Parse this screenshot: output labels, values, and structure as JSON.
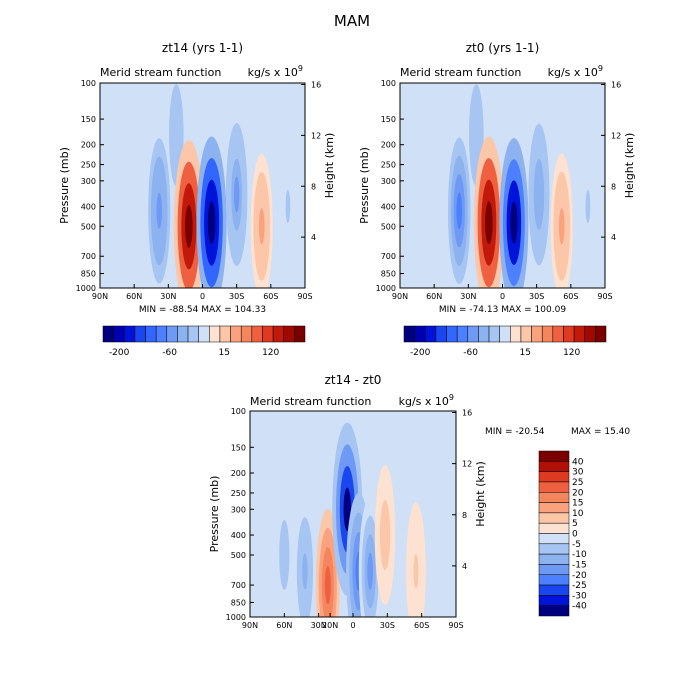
{
  "suptitle": "MAM",
  "chart_data": [
    {
      "type": "heatmap",
      "title": "zt14 (yrs 1-1)",
      "subtitle": "Merid stream function",
      "units_prefix": "kg/s x 10",
      "units_exp": "9",
      "xlabel": "",
      "ylabel": "Pressure (mb)",
      "y2label": "Height (km)",
      "xticks": [
        "90N",
        "60N",
        "30N",
        "0",
        "30S",
        "60S",
        "90S"
      ],
      "xtick_lat": [
        90,
        60,
        30,
        0,
        -30,
        -60,
        -90
      ],
      "yticks": [
        100,
        150,
        200,
        250,
        300,
        400,
        500,
        700,
        850,
        1000
      ],
      "y2ticks": [
        4,
        8,
        12,
        16
      ],
      "ylim": [
        1000,
        100
      ],
      "min_label": "MIN = -88.54",
      "max_label": "MAX = 104.33",
      "colorbar": {
        "orientation": "horizontal",
        "labels": [
          "-200",
          "-60",
          "15",
          "120"
        ],
        "colors": [
          "#00007f",
          "#0000b3",
          "#0014d9",
          "#1946ee",
          "#3366ff",
          "#4d80ff",
          "#6e99f5",
          "#8cb2f0",
          "#a6c5f2",
          "#cfe0f7",
          "#fde1d1",
          "#fcc6a9",
          "#f9a27d",
          "#f4855c",
          "#ee6040",
          "#dd3a1f",
          "#c21a0a",
          "#9e0a00",
          "#7a0000"
        ]
      },
      "cells": [
        {
          "lat": 23,
          "p": 180,
          "v": -10
        },
        {
          "lat": 38,
          "p": 420,
          "v": -30
        },
        {
          "lat": 12,
          "p": 500,
          "v": 88
        },
        {
          "lat": -8,
          "p": 480,
          "v": -88
        },
        {
          "lat": -30,
          "p": 350,
          "v": -25
        },
        {
          "lat": -52,
          "p": 500,
          "v": 30
        },
        {
          "lat": -75,
          "p": 400,
          "v": -5
        }
      ]
    },
    {
      "type": "heatmap",
      "title": "zt0 (yrs 1-1)",
      "subtitle": "Merid stream function",
      "units_prefix": "kg/s x 10",
      "units_exp": "9",
      "xlabel": "",
      "ylabel": "Pressure (mb)",
      "y2label": "Height (km)",
      "xticks": [
        "90N",
        "60N",
        "30N",
        "0",
        "30S",
        "60S",
        "90S"
      ],
      "xtick_lat": [
        90,
        60,
        30,
        0,
        -30,
        -60,
        -90
      ],
      "yticks": [
        100,
        150,
        200,
        250,
        300,
        400,
        500,
        700,
        850,
        1000
      ],
      "y2ticks": [
        4,
        8,
        12,
        16
      ],
      "ylim": [
        1000,
        100
      ],
      "min_label": "MIN = -74.13",
      "max_label": "MAX = 100.09",
      "colorbar": {
        "orientation": "horizontal",
        "labels": [
          "-200",
          "-60",
          "15",
          "120"
        ],
        "colors": [
          "#00007f",
          "#0000b3",
          "#0014d9",
          "#1946ee",
          "#3366ff",
          "#4d80ff",
          "#6e99f5",
          "#8cb2f0",
          "#a6c5f2",
          "#cfe0f7",
          "#fde1d1",
          "#fcc6a9",
          "#f9a27d",
          "#f4855c",
          "#ee6040",
          "#dd3a1f",
          "#c21a0a",
          "#9e0a00",
          "#7a0000"
        ]
      },
      "cells": [
        {
          "lat": 23,
          "p": 180,
          "v": -10
        },
        {
          "lat": 38,
          "p": 420,
          "v": -30
        },
        {
          "lat": 12,
          "p": 480,
          "v": 80
        },
        {
          "lat": -10,
          "p": 480,
          "v": -74
        },
        {
          "lat": -32,
          "p": 350,
          "v": -20
        },
        {
          "lat": -52,
          "p": 500,
          "v": 28
        },
        {
          "lat": -75,
          "p": 400,
          "v": -5
        }
      ]
    },
    {
      "type": "heatmap",
      "title": "zt14 - zt0",
      "subtitle": "Merid stream function",
      "units_prefix": "kg/s x 10",
      "units_exp": "9",
      "xlabel": "",
      "ylabel": "Pressure (mb)",
      "y2label": "Height (km)",
      "xticks": [
        "90N",
        "60N",
        "30N",
        "20N",
        "0",
        "30S",
        "60S",
        "90S"
      ],
      "xtick_lat": [
        90,
        60,
        30,
        20,
        0,
        -30,
        -60,
        -90
      ],
      "yticks": [
        100,
        150,
        200,
        250,
        300,
        400,
        500,
        700,
        850,
        1000
      ],
      "y2ticks": [
        4,
        8,
        12,
        16
      ],
      "ylim": [
        1000,
        100
      ],
      "min_label": "MIN = -20.54",
      "max_label": "MAX =  15.40",
      "colorbar": {
        "orientation": "vertical",
        "labels": [
          "40",
          "30",
          "25",
          "20",
          "15",
          "10",
          "5",
          "0",
          "-5",
          "-10",
          "-15",
          "-20",
          "-25",
          "-30",
          "-40"
        ],
        "colors": [
          "#7a0000",
          "#b01005",
          "#dd3a1f",
          "#ee6040",
          "#f4855c",
          "#f9a27d",
          "#fcc6a9",
          "#fde1d1",
          "#cfe0f7",
          "#a6c5f2",
          "#8cb2f0",
          "#6e99f5",
          "#4d80ff",
          "#1946ee",
          "#0014d9",
          "#00007f"
        ]
      },
      "cells": [
        {
          "lat": 60,
          "p": 500,
          "v": -4
        },
        {
          "lat": 42,
          "p": 600,
          "v": -6
        },
        {
          "lat": 22,
          "p": 700,
          "v": 10
        },
        {
          "lat": 5,
          "p": 300,
          "v": -20
        },
        {
          "lat": -5,
          "p": 600,
          "v": -12
        },
        {
          "lat": -15,
          "p": 600,
          "v": -8
        },
        {
          "lat": -28,
          "p": 400,
          "v": 4
        },
        {
          "lat": -55,
          "p": 600,
          "v": 3
        }
      ]
    }
  ]
}
